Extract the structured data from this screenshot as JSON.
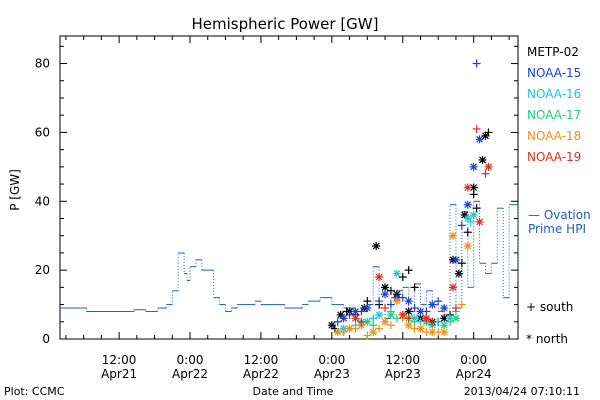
{
  "chart_data": {
    "type": "scatter",
    "title": "Hemispheric Power [GW]",
    "xlabel": "Date and Time",
    "ylabel": "P [GW]",
    "ylim": [
      0,
      88
    ],
    "yticks": [
      0,
      20,
      40,
      60,
      80
    ],
    "x_unit": "hours since 2013-04-21 00:00 UT",
    "xlim": [
      2,
      79.5
    ],
    "xticks": [
      {
        "x": 12,
        "label": "12:00",
        "sublabel": "Apr21"
      },
      {
        "x": 24,
        "label": "0:00",
        "sublabel": "Apr22"
      },
      {
        "x": 36,
        "label": "12:00",
        "sublabel": "Apr22"
      },
      {
        "x": 48,
        "label": "0:00",
        "sublabel": "Apr23"
      },
      {
        "x": 60,
        "label": "12:00",
        "sublabel": "Apr23"
      },
      {
        "x": 72,
        "label": "0:00",
        "sublabel": "Apr24"
      }
    ],
    "grid": false,
    "legend_position": "right",
    "marker_legend": {
      "south": "+ south",
      "north": "* north"
    },
    "ovation": {
      "label_line1": "— Ovation",
      "label_line2": "Prime HPI",
      "color": "#1f5fbf",
      "style": "steps",
      "x": [
        2,
        6.5,
        13,
        14.5,
        16.5,
        18.5,
        20,
        21,
        22,
        23,
        23.5,
        24,
        25,
        26,
        28,
        29,
        30,
        31,
        32,
        33,
        35,
        36,
        40,
        43,
        44,
        46,
        48,
        50,
        52,
        54,
        55,
        56,
        57,
        58,
        59,
        60,
        61,
        62,
        63,
        64,
        65,
        66,
        67,
        68,
        69,
        70,
        71,
        72,
        73,
        74,
        75,
        76,
        77,
        78,
        79.5
      ],
      "y": [
        9,
        8,
        8,
        8.5,
        8,
        9,
        10,
        14,
        25,
        19,
        17,
        21,
        23,
        20,
        12,
        10,
        8,
        9,
        10,
        10,
        11,
        10,
        9,
        10,
        11,
        12,
        10,
        9,
        8,
        10,
        21,
        9,
        6,
        12,
        14,
        15,
        8,
        16,
        10,
        14,
        10,
        8,
        7,
        39,
        9,
        37,
        15,
        40,
        22,
        19,
        22,
        38,
        12,
        39,
        17
      ]
    },
    "series": [
      {
        "name": "METP-02",
        "color": "#000000",
        "north": [
          [
            48,
            4
          ],
          [
            49.5,
            7
          ],
          [
            51,
            8
          ],
          [
            53.5,
            9
          ],
          [
            55.5,
            27
          ],
          [
            57,
            15
          ],
          [
            59,
            13
          ],
          [
            61,
            8
          ],
          [
            63,
            6
          ],
          [
            65,
            5
          ],
          [
            67,
            6
          ],
          [
            68.5,
            23
          ],
          [
            69.5,
            19
          ],
          [
            70.5,
            36
          ],
          [
            72,
            44
          ],
          [
            73.5,
            52
          ],
          [
            74,
            59
          ]
        ],
        "south": [
          [
            48.5,
            3
          ],
          [
            50.5,
            8
          ],
          [
            52,
            7
          ],
          [
            54,
            11
          ],
          [
            56,
            10
          ],
          [
            58,
            14
          ],
          [
            60,
            18
          ],
          [
            61,
            20
          ],
          [
            62,
            15
          ],
          [
            64,
            6
          ],
          [
            66,
            5
          ],
          [
            68,
            7
          ],
          [
            70,
            22
          ],
          [
            71,
            31
          ],
          [
            72,
            42
          ],
          [
            72.5,
            38
          ],
          [
            74.5,
            60
          ]
        ]
      },
      {
        "name": "NOAA-15",
        "color": "#1f3fcf",
        "north": [
          [
            50,
            6
          ],
          [
            52,
            8
          ],
          [
            54,
            9
          ],
          [
            57,
            13
          ],
          [
            59,
            12
          ],
          [
            61,
            11
          ],
          [
            63,
            8
          ],
          [
            65,
            10
          ],
          [
            67,
            9
          ],
          [
            69,
            23
          ],
          [
            71,
            39
          ],
          [
            72,
            50
          ],
          [
            73,
            58
          ]
        ],
        "south": [
          [
            49,
            5
          ],
          [
            51,
            7
          ],
          [
            53,
            8
          ],
          [
            56,
            11
          ],
          [
            58,
            10
          ],
          [
            60,
            12
          ],
          [
            62,
            9
          ],
          [
            64,
            8
          ],
          [
            66,
            11
          ],
          [
            70,
            33
          ],
          [
            72.5,
            80
          ]
        ]
      },
      {
        "name": "NOAA-16",
        "color": "#20c4d8",
        "north": [
          [
            50,
            3
          ],
          [
            53,
            5
          ],
          [
            56,
            7
          ],
          [
            59,
            19
          ],
          [
            62,
            6
          ],
          [
            65,
            4
          ],
          [
            68,
            6
          ],
          [
            71,
            35
          ],
          [
            72,
            36
          ]
        ],
        "south": [
          [
            49,
            2
          ],
          [
            52,
            4
          ],
          [
            55,
            6
          ],
          [
            58,
            8
          ],
          [
            60,
            7
          ],
          [
            63,
            5
          ],
          [
            66,
            5
          ],
          [
            69,
            8
          ],
          [
            71.5,
            34
          ]
        ]
      },
      {
        "name": "NOAA-17",
        "color": "#20d07a",
        "north": [
          [
            54,
            5
          ],
          [
            58,
            7
          ],
          [
            61,
            6
          ],
          [
            64,
            5
          ],
          [
            67,
            4
          ],
          [
            69,
            6
          ]
        ],
        "south": [
          [
            55,
            4
          ],
          [
            59,
            6
          ],
          [
            62,
            5
          ],
          [
            65,
            4
          ],
          [
            68,
            5
          ]
        ]
      },
      {
        "name": "NOAA-18",
        "color": "#f0901a",
        "north": [
          [
            49,
            2
          ],
          [
            51,
            3
          ],
          [
            53,
            4
          ],
          [
            55,
            2
          ],
          [
            57,
            5
          ],
          [
            59,
            11
          ],
          [
            61,
            4
          ],
          [
            63,
            3
          ],
          [
            65,
            2
          ],
          [
            67,
            2
          ],
          [
            68.5,
            30
          ],
          [
            71,
            27
          ]
        ],
        "south": [
          [
            50,
            2
          ],
          [
            52,
            3
          ],
          [
            54,
            1
          ],
          [
            56,
            3
          ],
          [
            58,
            4
          ],
          [
            60,
            6
          ],
          [
            62,
            3
          ],
          [
            64,
            2
          ],
          [
            66,
            2
          ],
          [
            70,
            10
          ]
        ]
      },
      {
        "name": "NOAA-19",
        "color": "#e0301a",
        "north": [
          [
            52,
            6
          ],
          [
            56,
            18
          ],
          [
            60,
            7
          ],
          [
            64,
            6
          ],
          [
            68.5,
            15
          ],
          [
            71,
            44
          ],
          [
            73,
            34
          ],
          [
            74.5,
            50
          ]
        ],
        "south": [
          [
            53,
            5
          ],
          [
            57,
            9
          ],
          [
            61,
            6
          ],
          [
            65,
            5
          ],
          [
            69,
            9
          ],
          [
            72.5,
            61
          ],
          [
            74,
            48
          ]
        ]
      }
    ]
  },
  "footer": {
    "plot_source": "Plot: CCMC",
    "timestamp": "2013/04/24 07:10:11"
  }
}
